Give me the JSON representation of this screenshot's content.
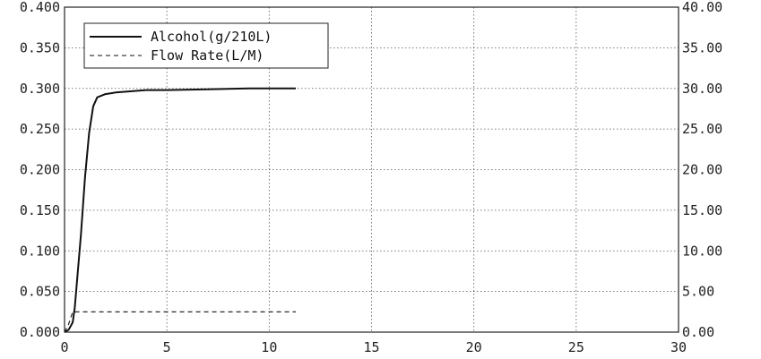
{
  "chart_data": {
    "type": "line",
    "grid": true,
    "legend_position": "top-left",
    "xlim": [
      0,
      30
    ],
    "x_ticks": [
      "0",
      "5",
      "10",
      "15",
      "20",
      "25",
      "30"
    ],
    "y_left": {
      "lim": [
        0,
        0.4
      ],
      "ticks": [
        "0.000",
        "0.050",
        "0.100",
        "0.150",
        "0.200",
        "0.250",
        "0.300",
        "0.350",
        "0.400"
      ]
    },
    "y_right": {
      "lim": [
        0,
        40
      ],
      "ticks": [
        "0.00",
        "5.00",
        "10.00",
        "15.00",
        "20.00",
        "25.00",
        "30.00",
        "35.00",
        "40.00"
      ]
    },
    "series": [
      {
        "name": "Alcohol(g/210L)",
        "axis": "left",
        "style": "solid",
        "color": "#111111",
        "points": [
          [
            0.0,
            0.0
          ],
          [
            0.2,
            0.003
          ],
          [
            0.4,
            0.012
          ],
          [
            0.5,
            0.03
          ],
          [
            0.6,
            0.06
          ],
          [
            0.8,
            0.12
          ],
          [
            1.0,
            0.19
          ],
          [
            1.2,
            0.245
          ],
          [
            1.4,
            0.278
          ],
          [
            1.6,
            0.289
          ],
          [
            2.0,
            0.293
          ],
          [
            2.5,
            0.295
          ],
          [
            3.0,
            0.296
          ],
          [
            4.0,
            0.298
          ],
          [
            5.0,
            0.298
          ],
          [
            7.0,
            0.299
          ],
          [
            9.0,
            0.3
          ],
          [
            11.3,
            0.3
          ]
        ]
      },
      {
        "name": "Flow Rate(L/M)",
        "axis": "right",
        "style": "dashed",
        "color": "#111111",
        "points": [
          [
            0.0,
            0.0
          ],
          [
            0.2,
            1.0
          ],
          [
            0.4,
            2.5
          ],
          [
            1.0,
            2.5
          ],
          [
            5.0,
            2.5
          ],
          [
            10.0,
            2.5
          ],
          [
            11.3,
            2.5
          ]
        ]
      }
    ]
  }
}
